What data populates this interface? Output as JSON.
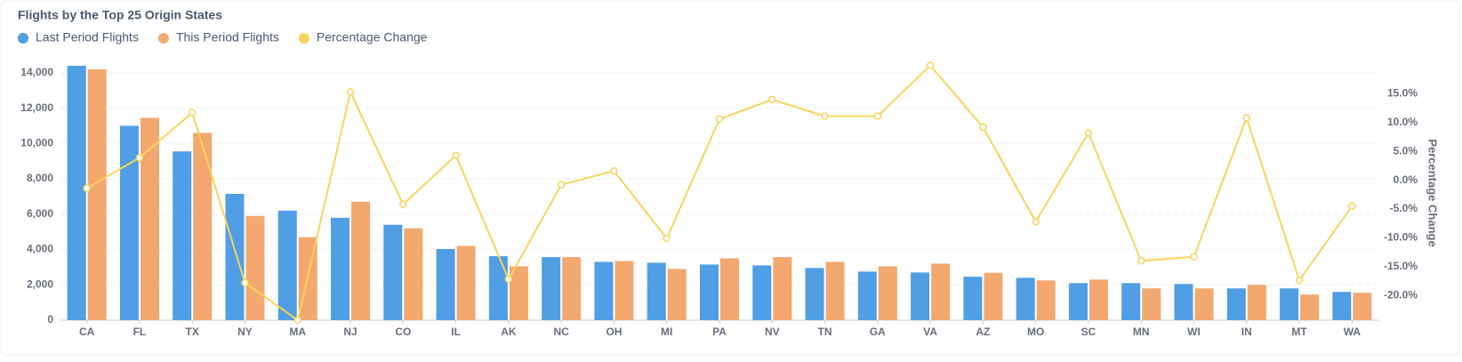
{
  "chart_data": {
    "type": "bar_line",
    "title": "Flights by the Top 25 Origin States",
    "y2_label": "Percentage Change",
    "categories": [
      "CA",
      "FL",
      "TX",
      "NY",
      "MA",
      "NJ",
      "CO",
      "IL",
      "AK",
      "NC",
      "OH",
      "MI",
      "PA",
      "NV",
      "TN",
      "GA",
      "VA",
      "AZ",
      "MO",
      "SC",
      "MN",
      "WI",
      "IN",
      "MT",
      "WA"
    ],
    "series": [
      {
        "name": "Last Period Flights",
        "color": "#509ee3",
        "type": "bar",
        "values": [
          14400,
          11000,
          9550,
          7150,
          6200,
          5800,
          5400,
          4030,
          3620,
          3570,
          3300,
          3250,
          3150,
          3100,
          2950,
          2750,
          2700,
          2460,
          2400,
          2100,
          2100,
          2050,
          1800,
          1800,
          1600
        ]
      },
      {
        "name": "This Period Flights",
        "color": "#f2a86f",
        "type": "bar",
        "values": [
          14200,
          11450,
          10600,
          5900,
          4700,
          6700,
          5200,
          4200,
          3050,
          3570,
          3350,
          2900,
          3500,
          3570,
          3300,
          3050,
          3200,
          2680,
          2250,
          2300,
          1800,
          1800,
          2000,
          1450,
          1550
        ]
      },
      {
        "name": "Percentage Change",
        "color": "#f9d45c",
        "type": "line",
        "axis": "y2",
        "values": [
          -1.4,
          3.9,
          11.7,
          -17.8,
          -24.3,
          15.3,
          -4.2,
          4.3,
          -17.2,
          -0.8,
          1.6,
          -10.1,
          10.6,
          14.0,
          11.1,
          11.1,
          19.9,
          9.2,
          -7.2,
          8.2,
          -14.0,
          -13.3,
          10.8,
          -17.4,
          -4.5
        ]
      }
    ],
    "ylim": [
      0,
      15000
    ],
    "yticks": [
      0,
      {
        "value": 2000,
        "label": "2,000"
      },
      {
        "value": 4000,
        "label": "4,000"
      },
      {
        "value": 6000,
        "label": "6,000"
      },
      {
        "value": 8000,
        "label": "8,000"
      },
      {
        "value": 10000,
        "label": "10,000"
      },
      {
        "value": 12000,
        "label": "12,000"
      },
      {
        "value": 14000,
        "label": "14,000"
      }
    ],
    "y2lim": [
      -24.3,
      21.7
    ],
    "y2ticks": [
      {
        "value": -20,
        "label": "-20.0%"
      },
      {
        "value": -15,
        "label": "-15.0%"
      },
      {
        "value": -10,
        "label": "-10.0%"
      },
      {
        "value": -5,
        "label": "-5.0%"
      },
      {
        "value": 0,
        "label": "0.0%"
      },
      {
        "value": 5,
        "label": "5.0%"
      },
      {
        "value": 10,
        "label": "10.0%"
      },
      {
        "value": 15,
        "label": "15.0%"
      }
    ],
    "grid": true
  }
}
